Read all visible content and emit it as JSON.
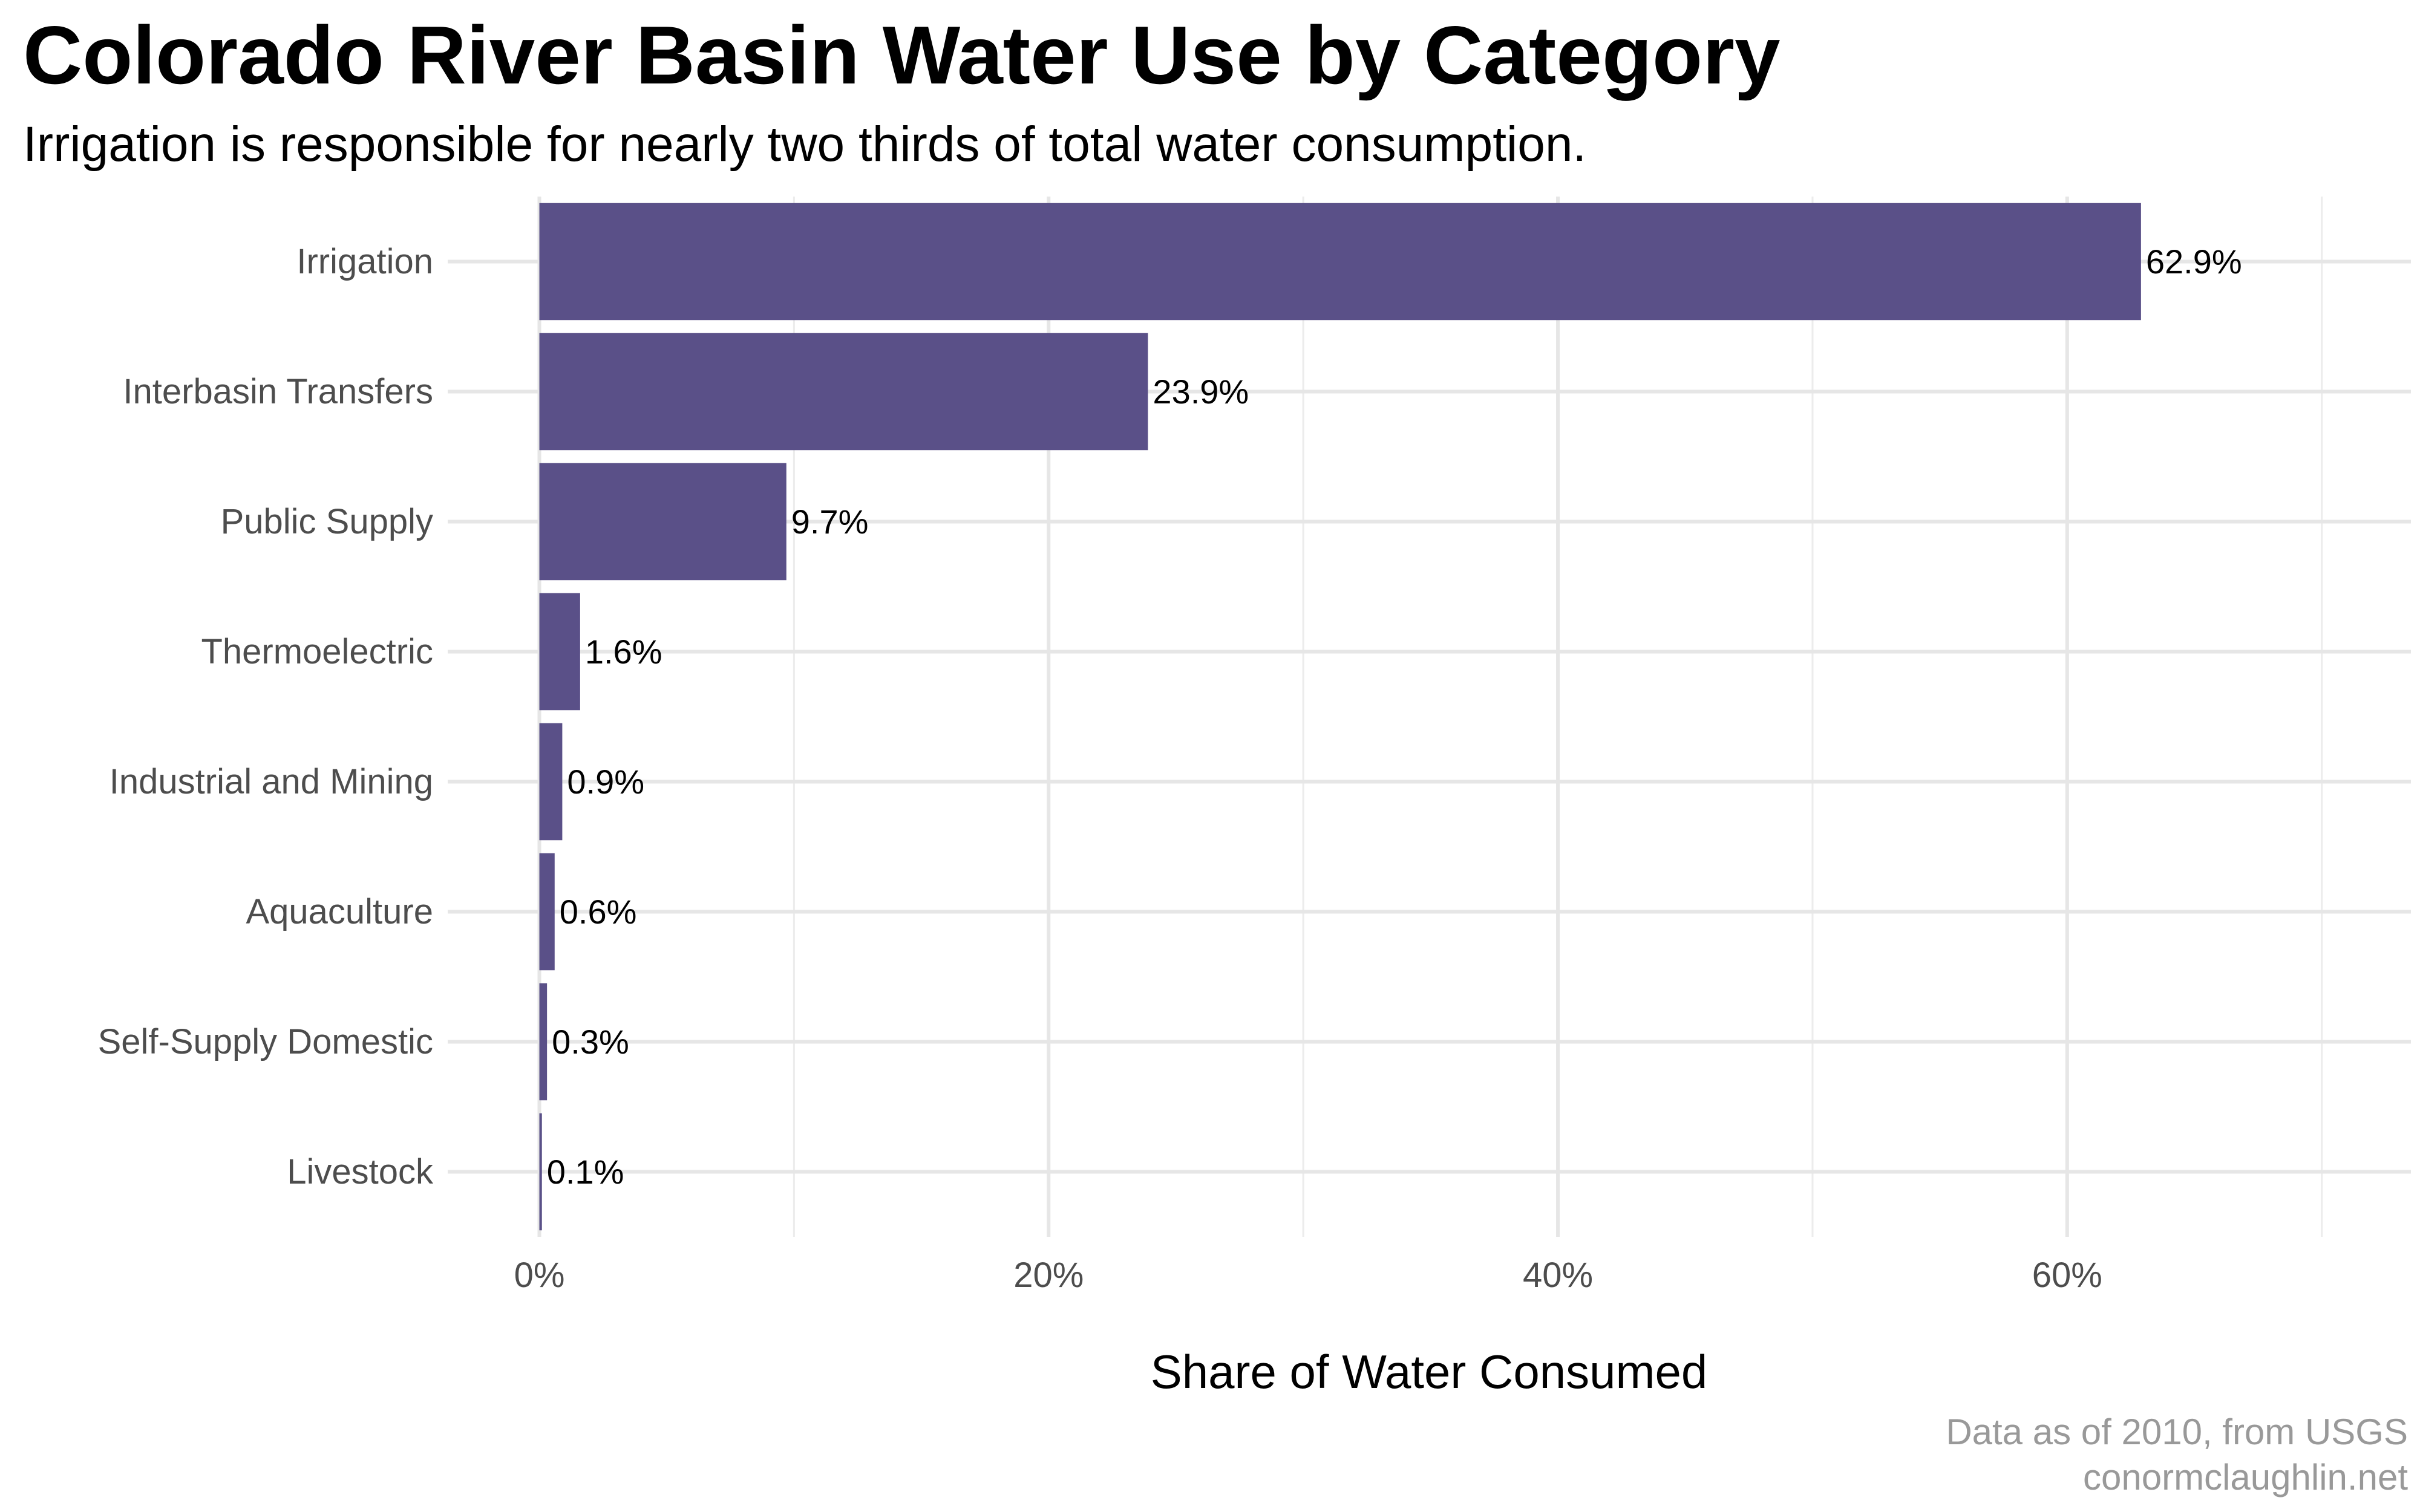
{
  "chart_data": {
    "type": "bar",
    "orientation": "horizontal",
    "title": "Colorado River Basin Water Use by Category",
    "subtitle": "Irrigation is responsible for nearly two thirds of total water consumption.",
    "xlabel": "Share of Water Consumed",
    "ylabel": "",
    "categories": [
      "Irrigation",
      "Interbasin Transfers",
      "Public Supply",
      "Thermoelectric",
      "Industrial and Mining",
      "Aquaculture",
      "Self-Supply Domestic",
      "Livestock"
    ],
    "values": [
      62.9,
      23.9,
      9.7,
      1.6,
      0.9,
      0.6,
      0.3,
      0.1
    ],
    "data_labels": [
      "62.9%",
      "23.9%",
      "9.7%",
      "1.6%",
      "0.9%",
      "0.6%",
      "0.3%",
      "0.1%"
    ],
    "xticks": [
      0,
      20,
      40,
      60
    ],
    "xtick_labels": [
      "0%",
      "20%",
      "40%",
      "60%"
    ],
    "xlim": [
      -3.6,
      73.5
    ],
    "grid": true,
    "legend": "none",
    "bar_color": "#5a5088",
    "caption": [
      "Data as of 2010, from USGS",
      "conormclaughlin.net"
    ]
  }
}
